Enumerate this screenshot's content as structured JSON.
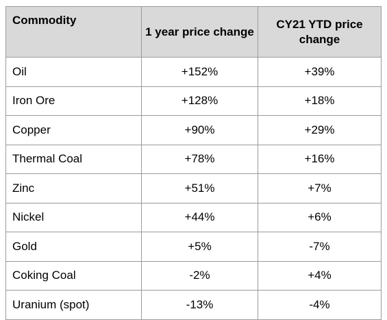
{
  "table": {
    "headers": [
      "Commodity",
      "1 year price change",
      "CY21 YTD price change"
    ],
    "rows": [
      [
        "Oil",
        "+152%",
        "+39%"
      ],
      [
        "Iron Ore",
        "+128%",
        "+18%"
      ],
      [
        "Copper",
        "+90%",
        "+29%"
      ],
      [
        "Thermal Coal",
        "+78%",
        "+16%"
      ],
      [
        "Zinc",
        "+51%",
        "+7%"
      ],
      [
        "Nickel",
        "+44%",
        "+6%"
      ],
      [
        "Gold",
        "+5%",
        "-7%"
      ],
      [
        "Coking Coal",
        "-2%",
        "+4%"
      ],
      [
        "Uranium (spot)",
        "-13%",
        "-4%"
      ]
    ]
  },
  "colors": {
    "header_background": "#d9d9d9",
    "border": "#9a9a9a"
  }
}
